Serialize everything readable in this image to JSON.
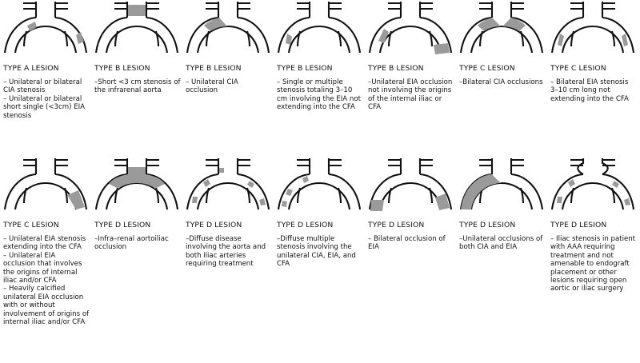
{
  "panels": [
    {
      "title": "TYPE A LESION",
      "lines": [
        "– Unilateral or bilateral CIA stenosis",
        "– Unilateral or bilateral short single (<3cm) EIA stenosis"
      ]
    },
    {
      "title": "TYPE B LESION",
      "lines": [
        "–Short <3 cm stenosis of the infrarenal aorta"
      ]
    },
    {
      "title": "TYPE B LESION",
      "lines": [
        "– Unilateral CIA occlusion"
      ]
    },
    {
      "title": "TYPE B LESION",
      "lines": [
        "– Single or multiple stenosis totaling 3–10 cm involving the EIA not extending into the CFA"
      ]
    },
    {
      "title": "TYPE B LESION",
      "lines": [
        "–Unilateral EIA occlusion not involving the origins of the internal iliac or CFA"
      ]
    },
    {
      "title": "TYPE C LESION",
      "lines": [
        "–Bilateral CIA occlusions"
      ]
    },
    {
      "title": "TYPE C LESION",
      "lines": [
        "– Bilateral EIA stenosis 3–10 cm long not extending into the CFA"
      ]
    },
    {
      "title": "TYPE C LESION",
      "lines": [
        "– Unilateral EIA stenosis extending into the CFA",
        "– Unilateral EIA occlusion that involves the origins of internal iliac and/or CFA",
        "– Heavily calcified unilateral EIA occlusion with or without involvement of origins of internal iliac and/or CFA"
      ]
    },
    {
      "title": "TYPE D LESION",
      "lines": [
        "–Infra–renal aortoiliac occlusion"
      ]
    },
    {
      "title": "TYPE D LESION",
      "lines": [
        "–Diffuse disease involving the aorta and both iliac arteries requiring treatment"
      ]
    },
    {
      "title": "TYPE D LESION",
      "lines": [
        "–Diffuse multiple stenosis involving the unilateral CIA, EIA, and CFA"
      ]
    },
    {
      "title": "TYPE D LESION",
      "lines": [
        "– Bilateral occlusion of EIA"
      ]
    },
    {
      "title": "TYPE D LESION",
      "lines": [
        "–Unilateral occlusions of both CIA and EIA"
      ]
    },
    {
      "title": "TYPE D LESION",
      "lines": [
        "– Iliac stenosis in patient with AAA requiring treatment and not amenable to endograft placement or other lesions requiring open aortic or iliac surgery"
      ]
    }
  ]
}
